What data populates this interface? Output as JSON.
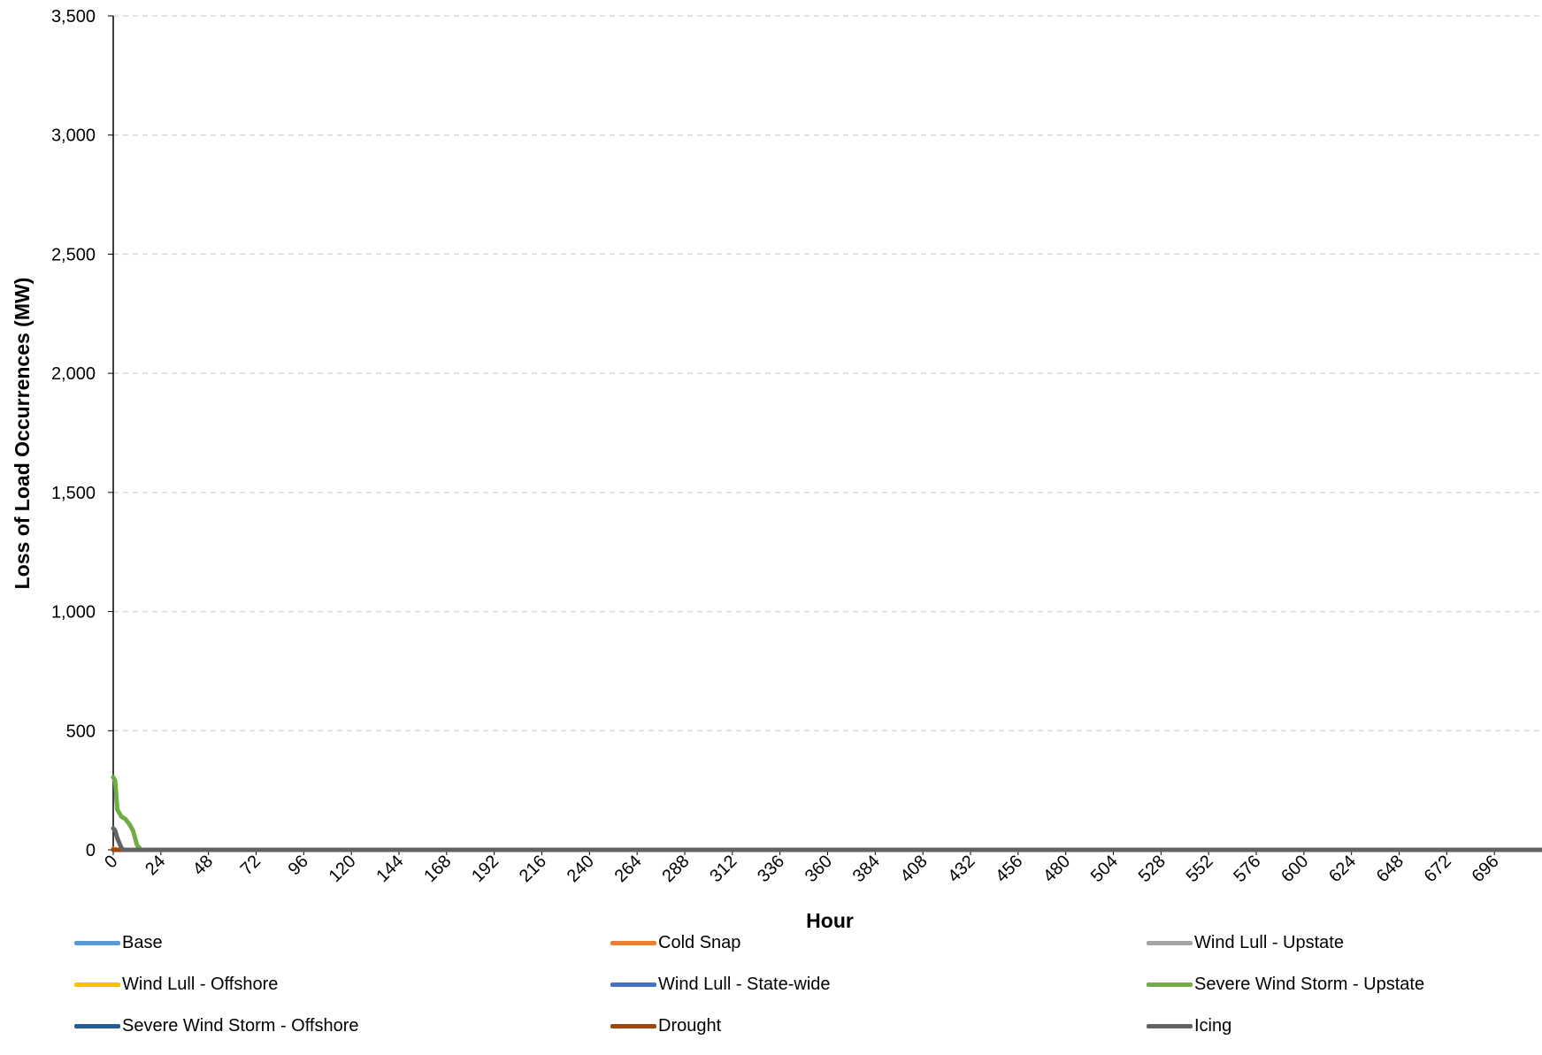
{
  "chart_data": {
    "type": "line",
    "title": "",
    "xlabel": "Hour",
    "ylabel": "Loss of Load Occurrences (MW)",
    "xlim": [
      0,
      720
    ],
    "ylim": [
      0,
      3500
    ],
    "x_ticks": [
      "0",
      "24",
      "48",
      "72",
      "96",
      "120",
      "144",
      "168",
      "192",
      "216",
      "240",
      "264",
      "288",
      "312",
      "336",
      "360",
      "384",
      "408",
      "432",
      "456",
      "480",
      "504",
      "528",
      "552",
      "576",
      "600",
      "624",
      "648",
      "672",
      "696"
    ],
    "y_ticks": [
      "0",
      "500",
      "1,000",
      "1,500",
      "2,000",
      "2,500",
      "3,000",
      "3,500"
    ],
    "y_tick_values": [
      0,
      500,
      1000,
      1500,
      2000,
      2500,
      3000,
      3500
    ],
    "grid": "horizontal dashed",
    "legend_position": "bottom",
    "series": [
      {
        "name": "Base",
        "color": "#5b9bd5",
        "points": [
          [
            0,
            0
          ],
          [
            720,
            0
          ]
        ]
      },
      {
        "name": "Cold Snap",
        "color": "#ed7d31",
        "points": [
          [
            0,
            5
          ],
          [
            1,
            2
          ],
          [
            2,
            0
          ],
          [
            720,
            0
          ]
        ]
      },
      {
        "name": "Wind Lull - Upstate",
        "color": "#a5a5a5",
        "points": [
          [
            0,
            0
          ],
          [
            720,
            0
          ]
        ]
      },
      {
        "name": "Wind Lull - Offshore",
        "color": "#ffc000",
        "points": [
          [
            0,
            0
          ],
          [
            720,
            0
          ]
        ]
      },
      {
        "name": "Wind Lull - State-wide",
        "color": "#4472c4",
        "points": [
          [
            0,
            0
          ],
          [
            720,
            0
          ]
        ]
      },
      {
        "name": "Severe Wind Storm - Upstate",
        "color": "#70ad47",
        "points": [
          [
            0,
            305
          ],
          [
            1,
            290
          ],
          [
            2,
            170
          ],
          [
            4,
            140
          ],
          [
            6,
            130
          ],
          [
            8,
            110
          ],
          [
            10,
            80
          ],
          [
            12,
            20
          ],
          [
            14,
            0
          ],
          [
            720,
            0
          ]
        ]
      },
      {
        "name": "Severe Wind Storm - Offshore",
        "color": "#255e91",
        "points": [
          [
            0,
            0
          ],
          [
            720,
            0
          ]
        ]
      },
      {
        "name": "Drought",
        "color": "#9e480e",
        "points": [
          [
            0,
            0
          ],
          [
            720,
            0
          ]
        ]
      },
      {
        "name": "Icing",
        "color": "#636363",
        "points": [
          [
            0,
            90
          ],
          [
            1,
            80
          ],
          [
            2,
            50
          ],
          [
            3,
            30
          ],
          [
            4,
            10
          ],
          [
            5,
            0
          ],
          [
            720,
            0
          ]
        ]
      }
    ]
  }
}
